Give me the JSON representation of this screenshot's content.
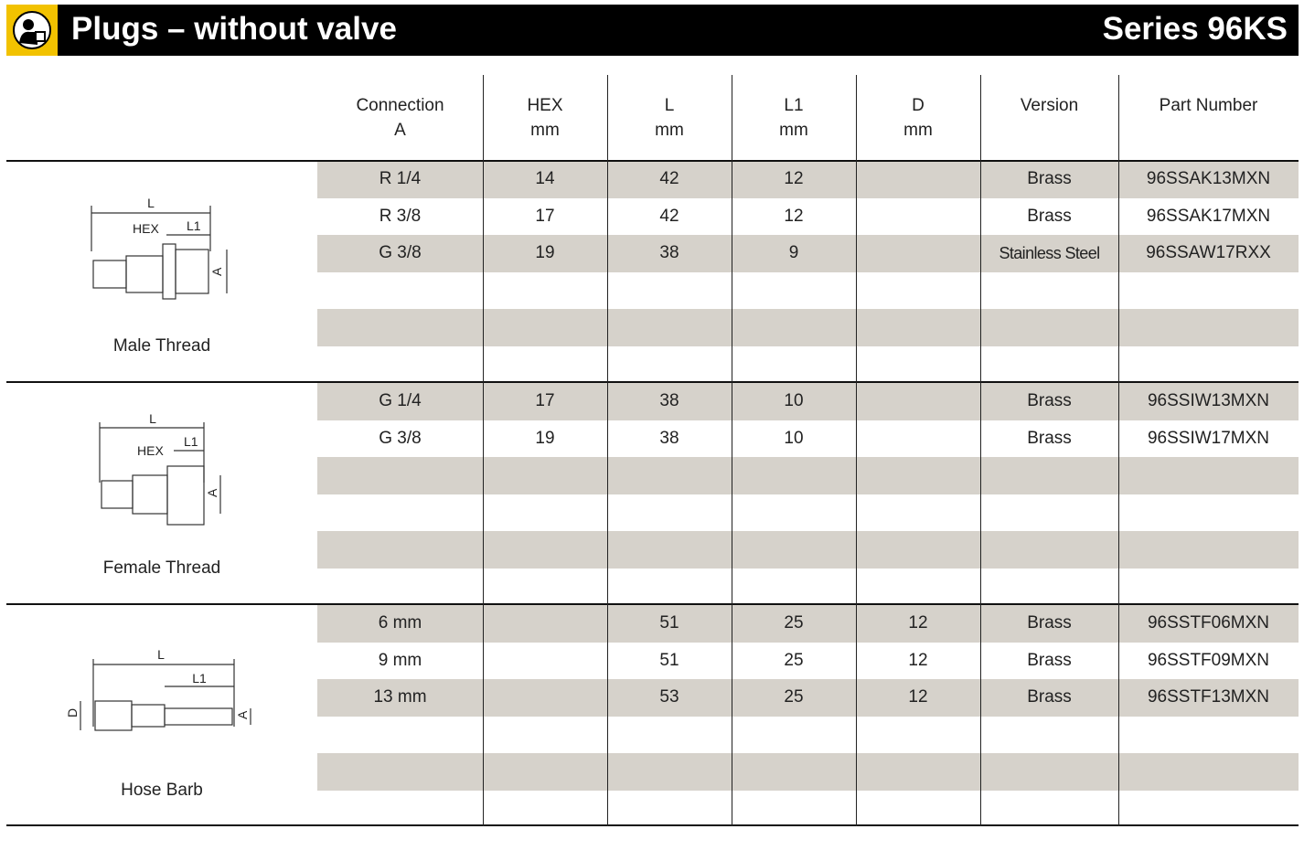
{
  "header": {
    "title": "Plugs – without valve",
    "series": "Series 96KS"
  },
  "table": {
    "columns": [
      [
        "Connection",
        "A"
      ],
      [
        "HEX",
        "mm"
      ],
      [
        "L",
        "mm"
      ],
      [
        "L1",
        "mm"
      ],
      [
        "D",
        "mm"
      ],
      [
        "Version"
      ],
      [
        "Part Number"
      ]
    ],
    "groups": [
      {
        "name": "Male Thread",
        "diagram_labels": [
          "L",
          "HEX",
          "L1",
          "A"
        ],
        "rows": [
          [
            "R 1/4",
            14,
            42,
            12,
            null,
            "Brass",
            "96SSAK13MXN"
          ],
          [
            "R 3/8",
            17,
            42,
            12,
            null,
            "Brass",
            "96SSAK17MXN"
          ],
          [
            "G 3/8",
            19,
            38,
            9,
            null,
            "Stainless Steel",
            "96SSAW17RXX"
          ]
        ]
      },
      {
        "name": "Female Thread",
        "diagram_labels": [
          "L",
          "HEX",
          "L1",
          "A"
        ],
        "rows": [
          [
            "G 1/4",
            17,
            38,
            10,
            null,
            "Brass",
            "96SSIW13MXN"
          ],
          [
            "G 3/8",
            19,
            38,
            10,
            null,
            "Brass",
            "96SSIW17MXN"
          ]
        ]
      },
      {
        "name": "Hose Barb",
        "diagram_labels": [
          "L",
          "L1",
          "D",
          "A"
        ],
        "rows": [
          [
            "6 mm",
            null,
            51,
            25,
            12,
            "Brass",
            "96SSTF06MXN"
          ],
          [
            "9 mm",
            null,
            51,
            25,
            12,
            "Brass",
            "96SSTF09MXN"
          ],
          [
            "13 mm",
            null,
            53,
            25,
            12,
            "Brass",
            "96SSTF13MXN"
          ]
        ]
      }
    ]
  }
}
